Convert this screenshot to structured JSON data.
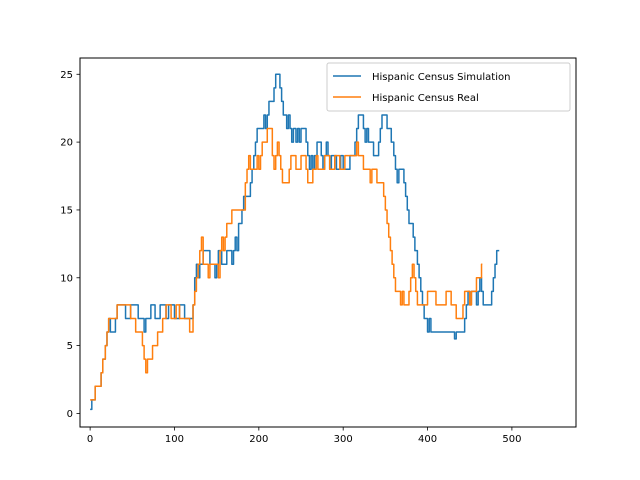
{
  "chart_data": {
    "type": "line",
    "xlim": [
      -12,
      576
    ],
    "ylim": [
      -1,
      26.2
    ],
    "xticks": [
      0,
      100,
      200,
      300,
      400,
      500
    ],
    "yticks": [
      0,
      5,
      10,
      15,
      20,
      25
    ],
    "grid": false,
    "legend_position": "top-right",
    "series": [
      {
        "name": "Hispanic Census Simulation",
        "color": "#1f77b4",
        "points": [
          [
            0,
            0.3
          ],
          [
            2,
            1
          ],
          [
            5,
            1
          ],
          [
            6,
            2
          ],
          [
            11,
            2
          ],
          [
            13,
            3
          ],
          [
            15,
            4
          ],
          [
            18,
            5
          ],
          [
            20,
            6
          ],
          [
            22,
            7
          ],
          [
            24,
            6
          ],
          [
            28,
            6
          ],
          [
            30,
            7
          ],
          [
            32,
            8
          ],
          [
            40,
            8
          ],
          [
            42,
            7
          ],
          [
            46,
            7
          ],
          [
            48,
            8
          ],
          [
            55,
            8
          ],
          [
            57,
            7
          ],
          [
            62,
            7
          ],
          [
            64,
            6
          ],
          [
            66,
            7
          ],
          [
            70,
            7
          ],
          [
            72,
            8
          ],
          [
            75,
            8
          ],
          [
            77,
            7
          ],
          [
            81,
            7
          ],
          [
            83,
            8
          ],
          [
            88,
            8
          ],
          [
            90,
            7
          ],
          [
            93,
            8
          ],
          [
            98,
            8
          ],
          [
            100,
            7
          ],
          [
            104,
            7
          ],
          [
            106,
            8
          ],
          [
            110,
            8
          ],
          [
            112,
            7
          ],
          [
            120,
            7
          ],
          [
            122,
            8
          ],
          [
            124,
            10
          ],
          [
            126,
            11
          ],
          [
            128,
            10
          ],
          [
            130,
            11
          ],
          [
            132,
            11
          ],
          [
            134,
            12
          ],
          [
            140,
            12
          ],
          [
            142,
            11
          ],
          [
            146,
            11
          ],
          [
            148,
            10
          ],
          [
            150,
            11
          ],
          [
            152,
            12
          ],
          [
            156,
            11
          ],
          [
            160,
            11
          ],
          [
            162,
            12
          ],
          [
            166,
            12
          ],
          [
            168,
            11
          ],
          [
            170,
            12
          ],
          [
            172,
            13
          ],
          [
            174,
            12
          ],
          [
            176,
            14
          ],
          [
            178,
            14
          ],
          [
            180,
            15
          ],
          [
            182,
            16
          ],
          [
            188,
            16
          ],
          [
            190,
            17
          ],
          [
            192,
            18
          ],
          [
            194,
            19
          ],
          [
            196,
            20
          ],
          [
            198,
            21
          ],
          [
            204,
            21
          ],
          [
            206,
            22
          ],
          [
            208,
            21
          ],
          [
            210,
            22
          ],
          [
            212,
            23
          ],
          [
            216,
            23
          ],
          [
            218,
            24
          ],
          [
            220,
            25
          ],
          [
            223,
            25
          ],
          [
            225,
            24
          ],
          [
            227,
            23
          ],
          [
            229,
            22
          ],
          [
            233,
            21
          ],
          [
            235,
            22
          ],
          [
            237,
            21
          ],
          [
            239,
            20
          ],
          [
            241,
            21
          ],
          [
            244,
            20
          ],
          [
            246,
            21
          ],
          [
            248,
            20
          ],
          [
            250,
            21
          ],
          [
            254,
            21
          ],
          [
            256,
            20
          ],
          [
            258,
            19
          ],
          [
            260,
            18
          ],
          [
            262,
            19
          ],
          [
            264,
            18
          ],
          [
            266,
            19
          ],
          [
            269,
            20
          ],
          [
            272,
            20
          ],
          [
            274,
            19
          ],
          [
            276,
            18
          ],
          [
            278,
            19
          ],
          [
            280,
            20
          ],
          [
            282,
            19
          ],
          [
            284,
            18
          ],
          [
            286,
            19
          ],
          [
            290,
            19
          ],
          [
            292,
            18
          ],
          [
            295,
            18
          ],
          [
            297,
            19
          ],
          [
            300,
            18
          ],
          [
            306,
            18
          ],
          [
            308,
            19
          ],
          [
            312,
            19
          ],
          [
            314,
            20
          ],
          [
            316,
            21
          ],
          [
            318,
            22
          ],
          [
            322,
            22
          ],
          [
            324,
            21
          ],
          [
            326,
            20
          ],
          [
            328,
            21
          ],
          [
            330,
            20
          ],
          [
            334,
            20
          ],
          [
            336,
            19
          ],
          [
            340,
            19
          ],
          [
            342,
            20
          ],
          [
            344,
            21
          ],
          [
            346,
            22
          ],
          [
            350,
            22
          ],
          [
            352,
            21
          ],
          [
            355,
            21
          ],
          [
            357,
            20
          ],
          [
            360,
            19
          ],
          [
            362,
            18
          ],
          [
            364,
            17
          ],
          [
            366,
            18
          ],
          [
            370,
            18
          ],
          [
            372,
            17
          ],
          [
            374,
            16
          ],
          [
            376,
            15
          ],
          [
            378,
            14
          ],
          [
            381,
            14
          ],
          [
            383,
            13
          ],
          [
            385,
            12
          ],
          [
            388,
            11
          ],
          [
            390,
            10
          ],
          [
            392,
            9
          ],
          [
            394,
            8
          ],
          [
            396,
            7
          ],
          [
            398,
            7
          ],
          [
            400,
            6
          ],
          [
            402,
            7
          ],
          [
            404,
            6
          ],
          [
            430,
            6
          ],
          [
            432,
            5.5
          ],
          [
            434,
            6
          ],
          [
            442,
            6
          ],
          [
            444,
            7
          ],
          [
            446,
            8
          ],
          [
            448,
            9
          ],
          [
            450,
            8
          ],
          [
            452,
            9
          ],
          [
            456,
            9
          ],
          [
            458,
            8
          ],
          [
            460,
            9
          ],
          [
            462,
            10
          ],
          [
            464,
            9
          ],
          [
            466,
            8
          ],
          [
            474,
            8
          ],
          [
            476,
            9
          ],
          [
            478,
            10
          ],
          [
            480,
            11
          ],
          [
            482,
            12
          ],
          [
            485,
            12
          ]
        ]
      },
      {
        "name": "Hispanic Census Real",
        "color": "#ff7f0e",
        "points": [
          [
            0,
            1
          ],
          [
            4,
            1
          ],
          [
            6,
            2
          ],
          [
            11,
            2
          ],
          [
            13,
            3
          ],
          [
            15,
            4
          ],
          [
            18,
            5
          ],
          [
            20,
            6
          ],
          [
            22,
            7
          ],
          [
            30,
            7
          ],
          [
            32,
            8
          ],
          [
            46,
            8
          ],
          [
            48,
            7
          ],
          [
            52,
            7
          ],
          [
            54,
            6
          ],
          [
            60,
            6
          ],
          [
            62,
            5
          ],
          [
            64,
            4
          ],
          [
            66,
            3
          ],
          [
            68,
            4
          ],
          [
            72,
            4
          ],
          [
            74,
            5
          ],
          [
            78,
            5
          ],
          [
            80,
            6
          ],
          [
            84,
            6
          ],
          [
            86,
            7
          ],
          [
            88,
            7
          ],
          [
            90,
            8
          ],
          [
            94,
            8
          ],
          [
            96,
            7
          ],
          [
            100,
            7
          ],
          [
            102,
            8
          ],
          [
            104,
            8
          ],
          [
            106,
            7
          ],
          [
            116,
            7
          ],
          [
            118,
            6
          ],
          [
            120,
            6
          ],
          [
            122,
            8
          ],
          [
            124,
            9
          ],
          [
            126,
            10
          ],
          [
            128,
            11
          ],
          [
            130,
            12
          ],
          [
            132,
            13
          ],
          [
            134,
            11
          ],
          [
            138,
            11
          ],
          [
            140,
            10
          ],
          [
            142,
            11
          ],
          [
            150,
            11
          ],
          [
            152,
            10
          ],
          [
            154,
            12
          ],
          [
            156,
            13
          ],
          [
            158,
            12
          ],
          [
            160,
            13
          ],
          [
            162,
            14
          ],
          [
            166,
            14
          ],
          [
            168,
            15
          ],
          [
            182,
            15
          ],
          [
            184,
            17
          ],
          [
            186,
            18
          ],
          [
            188,
            19
          ],
          [
            190,
            18
          ],
          [
            196,
            18
          ],
          [
            198,
            19
          ],
          [
            200,
            18
          ],
          [
            202,
            19
          ],
          [
            204,
            20
          ],
          [
            208,
            20
          ],
          [
            210,
            21
          ],
          [
            214,
            21
          ],
          [
            216,
            19
          ],
          [
            218,
            18
          ],
          [
            220,
            19
          ],
          [
            222,
            20
          ],
          [
            224,
            19
          ],
          [
            226,
            18
          ],
          [
            228,
            17
          ],
          [
            234,
            17
          ],
          [
            236,
            18
          ],
          [
            238,
            19
          ],
          [
            242,
            19
          ],
          [
            244,
            18
          ],
          [
            248,
            18
          ],
          [
            250,
            19
          ],
          [
            254,
            19
          ],
          [
            256,
            18
          ],
          [
            258,
            17
          ],
          [
            262,
            17
          ],
          [
            264,
            18
          ],
          [
            268,
            19
          ],
          [
            270,
            18
          ],
          [
            276,
            18
          ],
          [
            278,
            19
          ],
          [
            282,
            19
          ],
          [
            284,
            18
          ],
          [
            288,
            18
          ],
          [
            290,
            19
          ],
          [
            294,
            19
          ],
          [
            296,
            18
          ],
          [
            300,
            18
          ],
          [
            302,
            19
          ],
          [
            314,
            19
          ],
          [
            316,
            20
          ],
          [
            318,
            19
          ],
          [
            322,
            19
          ],
          [
            324,
            18
          ],
          [
            330,
            18
          ],
          [
            332,
            17
          ],
          [
            334,
            18
          ],
          [
            338,
            18
          ],
          [
            340,
            17
          ],
          [
            346,
            17
          ],
          [
            348,
            16
          ],
          [
            350,
            15
          ],
          [
            352,
            14
          ],
          [
            354,
            13
          ],
          [
            356,
            12
          ],
          [
            358,
            11
          ],
          [
            360,
            10
          ],
          [
            362,
            9
          ],
          [
            366,
            9
          ],
          [
            368,
            8
          ],
          [
            370,
            9
          ],
          [
            372,
            8
          ],
          [
            376,
            8
          ],
          [
            378,
            9
          ],
          [
            380,
            10
          ],
          [
            382,
            11
          ],
          [
            384,
            10
          ],
          [
            386,
            9
          ],
          [
            388,
            8
          ],
          [
            398,
            8
          ],
          [
            400,
            9
          ],
          [
            408,
            9
          ],
          [
            410,
            8
          ],
          [
            420,
            8
          ],
          [
            422,
            9
          ],
          [
            426,
            9
          ],
          [
            428,
            8
          ],
          [
            432,
            8
          ],
          [
            434,
            7
          ],
          [
            440,
            7
          ],
          [
            442,
            8
          ],
          [
            444,
            9
          ],
          [
            448,
            9
          ],
          [
            450,
            8
          ],
          [
            452,
            9
          ],
          [
            456,
            9
          ],
          [
            458,
            10
          ],
          [
            462,
            10
          ],
          [
            464,
            11
          ],
          [
            465,
            11
          ]
        ]
      }
    ]
  }
}
